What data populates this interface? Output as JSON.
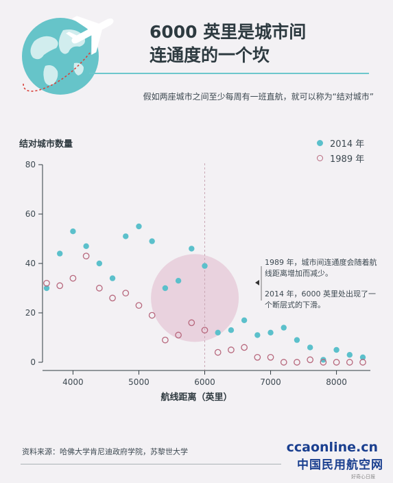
{
  "title_lines": [
    "6000 英里是城市间",
    "连通度的一个坎"
  ],
  "subtitle": "假如两座城市之间至少每周有一班直航，就可以称为“结对城市”",
  "legend": [
    {
      "label": "2014 年",
      "color": "#5bc0cb",
      "filled": true
    },
    {
      "label": "1989 年",
      "color": "#b7677c",
      "filled": false
    }
  ],
  "annotation": {
    "p1": "1989 年，城市间连通度会随着航线距离增加而减少。",
    "p2": "2014 年，6000 英里处出现了一个断层式的下滑。"
  },
  "source": "资料来源：哈佛大学肯尼迪政府学院，苏黎世大学",
  "watermark": {
    "url": "ccaonline.cn",
    "main": "中国民用航空网",
    "small": "好奇心日报"
  },
  "chart_data": {
    "type": "scatter",
    "ylabel": "结对城市数量",
    "xlabel": "航线距离（英里）",
    "xlim": [
      3600,
      8400
    ],
    "ylim": [
      0,
      80
    ],
    "x_ticks": [
      4000,
      5000,
      6000,
      7000,
      8000
    ],
    "y_ticks": [
      0,
      20,
      40,
      60,
      80
    ],
    "marker_line_x": 6000,
    "highlight_center": [
      5850,
      26
    ],
    "grid": false,
    "series": [
      {
        "name": "2014 年",
        "color": "#5bc0cb",
        "filled": true,
        "points": [
          [
            3600,
            30
          ],
          [
            3800,
            44
          ],
          [
            4000,
            53
          ],
          [
            4200,
            47
          ],
          [
            4400,
            40
          ],
          [
            4600,
            34
          ],
          [
            4800,
            51
          ],
          [
            5000,
            55
          ],
          [
            5200,
            49
          ],
          [
            5400,
            30
          ],
          [
            5600,
            33
          ],
          [
            5800,
            46
          ],
          [
            6000,
            39
          ],
          [
            6200,
            12
          ],
          [
            6400,
            13
          ],
          [
            6600,
            17
          ],
          [
            6800,
            11
          ],
          [
            7000,
            12
          ],
          [
            7200,
            14
          ],
          [
            7400,
            9
          ],
          [
            7600,
            6
          ],
          [
            7800,
            1
          ],
          [
            8000,
            5
          ],
          [
            8200,
            3
          ],
          [
            8400,
            2
          ]
        ]
      },
      {
        "name": "1989 年",
        "color": "#b7677c",
        "filled": false,
        "points": [
          [
            3600,
            32
          ],
          [
            3800,
            31
          ],
          [
            4000,
            34
          ],
          [
            4200,
            43
          ],
          [
            4400,
            30
          ],
          [
            4600,
            26
          ],
          [
            4800,
            28
          ],
          [
            5000,
            23
          ],
          [
            5200,
            19
          ],
          [
            5400,
            9
          ],
          [
            5600,
            11
          ],
          [
            5800,
            16
          ],
          [
            6000,
            13
          ],
          [
            6200,
            4
          ],
          [
            6400,
            5
          ],
          [
            6600,
            6
          ],
          [
            6800,
            2
          ],
          [
            7000,
            2
          ],
          [
            7200,
            0
          ],
          [
            7400,
            0
          ],
          [
            7600,
            1
          ],
          [
            7800,
            0
          ],
          [
            8000,
            0
          ],
          [
            8200,
            0
          ],
          [
            8400,
            0
          ]
        ]
      }
    ]
  }
}
